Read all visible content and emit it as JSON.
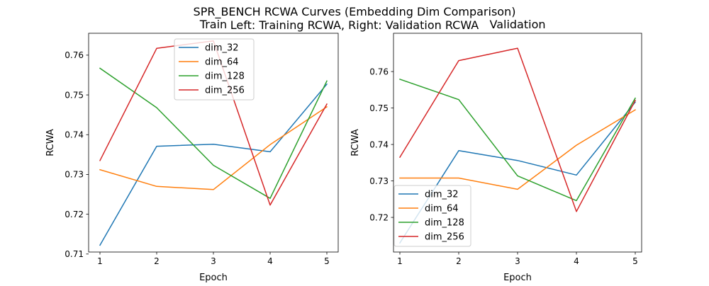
{
  "figure": {
    "suptitle_line1": "SPR_BENCH RCWA Curves (Embedding Dim Comparison)",
    "suptitle_line2": "Left: Training RCWA, Right: Validation RCWA"
  },
  "colors": {
    "dim_32": "#1f77b4",
    "dim_64": "#ff7f0e",
    "dim_128": "#2ca02c",
    "dim_256": "#d62728"
  },
  "chart_data": [
    {
      "type": "line",
      "title": "Train",
      "xlabel": "Epoch",
      "ylabel": "RCWA",
      "x": [
        1,
        2,
        3,
        4,
        5
      ],
      "xticks": [
        "1",
        "2",
        "3",
        "4",
        "5"
      ],
      "yticks": [
        "0.71",
        "0.72",
        "0.73",
        "0.74",
        "0.75",
        "0.76"
      ],
      "ylim": [
        0.7105,
        0.7655
      ],
      "legend_position": "upper center",
      "series": [
        {
          "name": "dim_32",
          "values": [
            0.7122,
            0.7371,
            0.7376,
            0.7357,
            0.7527
          ]
        },
        {
          "name": "dim_64",
          "values": [
            0.7312,
            0.727,
            0.7262,
            0.7375,
            0.747
          ]
        },
        {
          "name": "dim_128",
          "values": [
            0.7567,
            0.7468,
            0.7323,
            0.724,
            0.7535
          ]
        },
        {
          "name": "dim_256",
          "values": [
            0.7335,
            0.7617,
            0.7636,
            0.7223,
            0.7477
          ]
        }
      ]
    },
    {
      "type": "line",
      "title": "Validation",
      "xlabel": "Epoch",
      "ylabel": "RCWA",
      "x": [
        1,
        2,
        3,
        4,
        5
      ],
      "xticks": [
        "1",
        "2",
        "3",
        "4",
        "5"
      ],
      "yticks": [
        "0.72",
        "0.73",
        "0.74",
        "0.75",
        "0.76"
      ],
      "ylim": [
        0.7105,
        0.7705
      ],
      "legend_position": "lower left",
      "series": [
        {
          "name": "dim_32",
          "values": [
            0.713,
            0.7383,
            0.7356,
            0.7316,
            0.7516
          ]
        },
        {
          "name": "dim_64",
          "values": [
            0.7308,
            0.7308,
            0.7277,
            0.7398,
            0.7495
          ]
        },
        {
          "name": "dim_128",
          "values": [
            0.7579,
            0.7523,
            0.7314,
            0.7246,
            0.7527
          ]
        },
        {
          "name": "dim_256",
          "values": [
            0.7365,
            0.763,
            0.7664,
            0.7216,
            0.7521
          ]
        }
      ]
    }
  ]
}
